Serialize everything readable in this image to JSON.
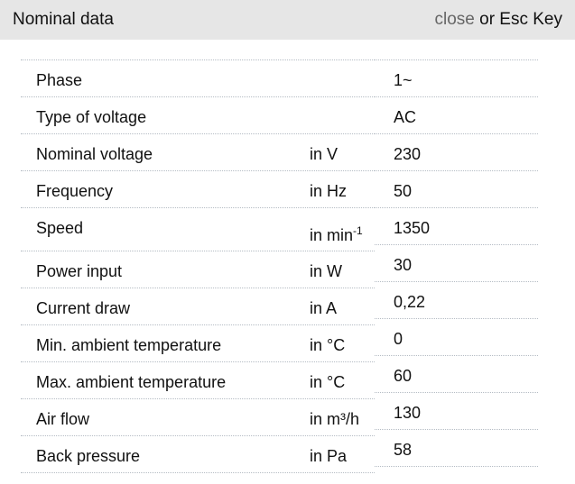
{
  "header": {
    "title": "Nominal data",
    "close_label": "close",
    "close_suffix": " or Esc Key"
  },
  "rows": [
    {
      "label": "Phase",
      "unit": "",
      "value": "1~"
    },
    {
      "label": "Type of voltage",
      "unit": "",
      "value": "AC"
    },
    {
      "label": "Nominal voltage",
      "unit": "in V",
      "value": "230"
    },
    {
      "label": "Frequency",
      "unit": "in Hz",
      "value": "50"
    },
    {
      "label": "Speed",
      "unit": "in min",
      "unit_sup": "-1",
      "value": "1350"
    },
    {
      "label": "Power input",
      "unit": "in W",
      "value": "30"
    },
    {
      "label": "Current draw",
      "unit": "in A",
      "value": "0,22"
    },
    {
      "label": "Min. ambient temperature",
      "unit": "in °C",
      "value": "0"
    },
    {
      "label": "Max. ambient temperature",
      "unit": "in °C",
      "value": "60"
    },
    {
      "label": "Air flow",
      "unit": "in m³/h",
      "value": "130"
    },
    {
      "label": "Back pressure",
      "unit": "in Pa",
      "value": "58"
    }
  ]
}
